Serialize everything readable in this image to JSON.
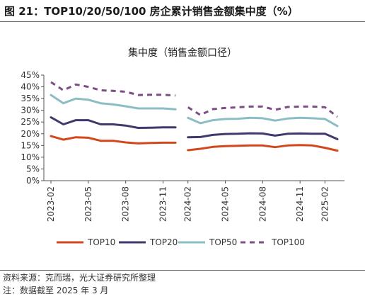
{
  "figure": {
    "title": "图 21：TOP10/20/50/100 房企累计销售金额集中度（%）",
    "source": "资料来源：克而瑞，光大证券研究所整理",
    "note": "注：数据截至 2025 年 3 月"
  },
  "chart_data": {
    "type": "line",
    "title": "集中度（销售金额口径）",
    "xlabel": "",
    "ylabel": "",
    "y_unit": "%",
    "ylim": [
      0,
      45
    ],
    "yticks": [
      "0%",
      "5%",
      "10%",
      "15%",
      "20%",
      "25%",
      "30%",
      "35%",
      "40%",
      "45%"
    ],
    "x": [
      "2023-02",
      "2023-03",
      "2023-04",
      "2023-05",
      "2023-06",
      "2023-07",
      "2023-08",
      "2023-09",
      "2023-10",
      "2023-11",
      "2023-12",
      "2024-02",
      "2024-03",
      "2024-04",
      "2024-05",
      "2024-06",
      "2024-07",
      "2024-08",
      "2024-09",
      "2024-10",
      "2024-11",
      "2024-12",
      "2025-02",
      "2025-03"
    ],
    "xtick_labels": [
      "2023-02",
      "2023-05",
      "2023-08",
      "2023-11",
      "2024-02",
      "2024-05",
      "2024-08",
      "2024-11",
      "2025-02"
    ],
    "grid": false,
    "legend_position": "bottom",
    "series": [
      {
        "name": "TOP10",
        "color": "#d2471c",
        "dash": "solid",
        "values": [
          19.0,
          17.5,
          18.5,
          18.3,
          17.0,
          17.0,
          16.3,
          15.9,
          16.1,
          16.2,
          16.2,
          13.0,
          13.6,
          14.4,
          14.7,
          14.9,
          15.0,
          15.0,
          14.3,
          15.0,
          15.2,
          15.0,
          14.0,
          12.8
        ]
      },
      {
        "name": "TOP20",
        "color": "#3f3a6b",
        "dash": "solid",
        "values": [
          27.0,
          24.0,
          25.8,
          25.8,
          24.0,
          24.0,
          23.5,
          22.5,
          22.6,
          22.7,
          22.7,
          18.5,
          18.6,
          19.5,
          19.9,
          20.0,
          20.2,
          20.1,
          19.2,
          20.0,
          20.1,
          20.0,
          20.0,
          17.7
        ]
      },
      {
        "name": "TOP50",
        "color": "#8dbdc4",
        "dash": "solid",
        "values": [
          36.5,
          33.0,
          35.0,
          34.5,
          33.0,
          32.5,
          31.7,
          30.8,
          30.8,
          30.8,
          30.4,
          26.8,
          24.5,
          25.8,
          26.3,
          26.4,
          26.8,
          26.6,
          25.6,
          26.5,
          26.8,
          26.6,
          26.3,
          23.3
        ]
      },
      {
        "name": "TOP100",
        "color": "#7d4e84",
        "dash": "dashed",
        "values": [
          42.0,
          38.5,
          41.0,
          40.0,
          38.5,
          38.3,
          37.9,
          36.5,
          36.6,
          36.6,
          36.3,
          31.3,
          28.0,
          30.5,
          31.0,
          31.3,
          31.6,
          31.6,
          30.2,
          31.4,
          31.6,
          31.6,
          31.3,
          27.2
        ]
      }
    ]
  }
}
